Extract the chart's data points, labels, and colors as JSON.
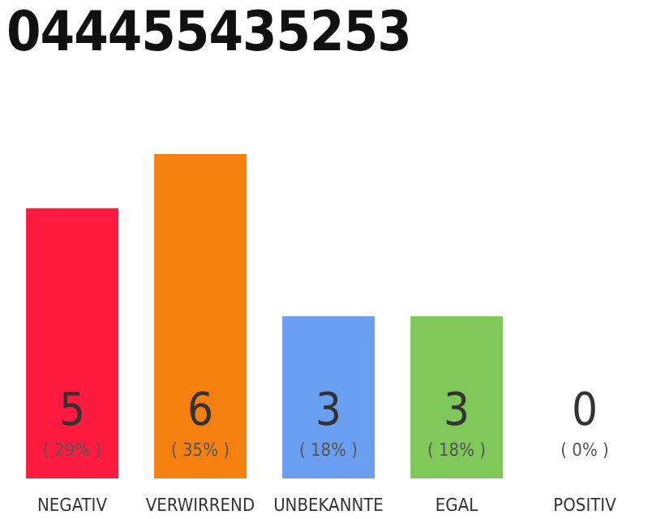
{
  "chart_data": {
    "type": "bar",
    "title": "044455435253",
    "categories": [
      "NEGATIV",
      "VERWIRREND",
      "UNBEKANNTE",
      "EGAL",
      "POSITIV"
    ],
    "values": [
      5,
      6,
      3,
      3,
      0
    ],
    "colors": [
      "#ff1a40",
      "#f5800f",
      "#6a9ef0",
      "#7ec85a",
      "#bbbbbb"
    ],
    "data_labels": true,
    "annotations": [
      "( 29% )",
      "( 35% )",
      "( 18% )",
      "( 18% )",
      "( 0% )"
    ]
  }
}
